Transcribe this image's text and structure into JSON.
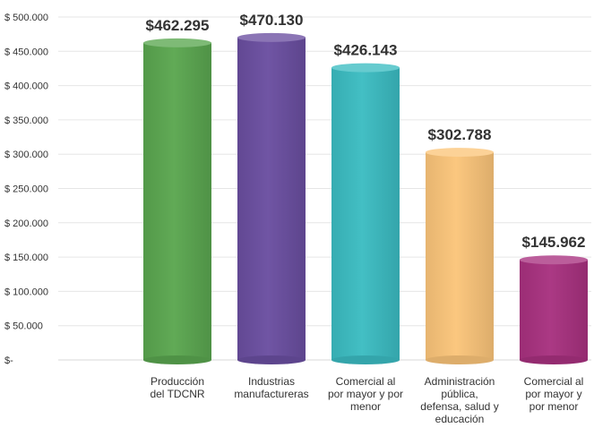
{
  "chart_data": {
    "type": "bar",
    "title": "",
    "xlabel": "",
    "ylabel": "",
    "ylim": [
      0,
      500000
    ],
    "y_ticks": [
      "$-",
      "$ 50.000",
      "$ 100.000",
      "$ 150.000",
      "$ 200.000",
      "$ 250.000",
      "$ 300.000",
      "$ 350.000",
      "$ 400.000",
      "$ 450.000",
      "$ 500.000"
    ],
    "grid": true,
    "bar_style": "3d-cylinder",
    "categories": [
      [
        "Producción",
        "del TDCNR"
      ],
      [
        "Industrias",
        "manufactureras"
      ],
      [
        "Comercial al",
        "por mayor y por",
        "menor"
      ],
      [
        "Administración",
        "pública,",
        "defensa, salud y",
        "educación"
      ],
      [
        "Comercial al",
        "por mayor y",
        "por menor"
      ]
    ],
    "values": [
      462295,
      470130,
      426143,
      302788,
      145962
    ],
    "data_labels": [
      "$462.295",
      "$470.130",
      "$426.143",
      "$302.788",
      "$145.962"
    ],
    "colors": [
      "#5aa64f",
      "#6a4ea0",
      "#3bbcc2",
      "#fbc57a",
      "#a8317f"
    ]
  }
}
